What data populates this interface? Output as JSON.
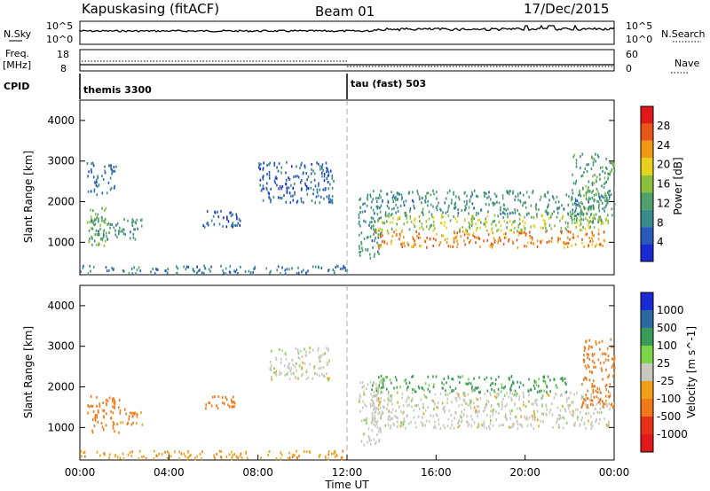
{
  "header": {
    "station": "Kapuskasing (fitACF)",
    "beam": "Beam 01",
    "date": "17/Dec/2015"
  },
  "noise_panel": {
    "left_label": "N.Sky",
    "right_label": "N.Search",
    "ticks_left": [
      "10^5",
      "10^0"
    ],
    "ticks_right": [
      "10^5",
      "10^0"
    ]
  },
  "freq_panel": {
    "left_label": "Freq.",
    "unit": "[MHz]",
    "right_label": "Nave",
    "ticks_left": [
      "18",
      "8"
    ],
    "ticks_right": [
      "60",
      "0"
    ]
  },
  "cpid": {
    "label": "CPID",
    "segments": [
      {
        "name": "themis 3300",
        "start_hour": 0
      },
      {
        "name": "tau (fast) 503",
        "start_hour": 12
      }
    ]
  },
  "chart_data": [
    {
      "type": "heatmap",
      "ylabel": "Slant Range [km]",
      "xlabel": "Time UT",
      "xlim": [
        0,
        24
      ],
      "ylim": [
        200,
        4500
      ],
      "yticks": [
        1000,
        2000,
        3000,
        4000
      ],
      "colorbar": {
        "label": "Power [dB]",
        "ticks": [
          "4",
          "8",
          "12",
          "16",
          "20",
          "24",
          "28"
        ],
        "colors": [
          "#1a2bd6",
          "#2a5ab8",
          "#3a8c8a",
          "#4fa06a",
          "#8cbf3c",
          "#e6d21a",
          "#f09a14",
          "#e8561a",
          "#e01818"
        ]
      },
      "regions": [
        {
          "t0": 0.3,
          "t1": 1.2,
          "r0": 900,
          "r1": 1900,
          "level": 14
        },
        {
          "t0": 0.5,
          "t1": 2.8,
          "r0": 1100,
          "r1": 1600,
          "level": 10
        },
        {
          "t0": 0.3,
          "t1": 1.6,
          "r0": 2200,
          "r1": 3000,
          "level": 6
        },
        {
          "t0": 0.0,
          "t1": 12.0,
          "r0": 250,
          "r1": 450,
          "level": 8
        },
        {
          "t0": 5.5,
          "t1": 7.2,
          "r0": 1400,
          "r1": 1800,
          "level": 6
        },
        {
          "t0": 8.0,
          "t1": 11.4,
          "r0": 2000,
          "r1": 3000,
          "level": 6
        },
        {
          "t0": 12.5,
          "t1": 13.5,
          "r0": 600,
          "r1": 2200,
          "level": 10
        },
        {
          "t0": 13.2,
          "t1": 23.6,
          "r0": 900,
          "r1": 1300,
          "level": 24
        },
        {
          "t0": 13.0,
          "t1": 23.8,
          "r0": 1300,
          "r1": 1700,
          "level": 16
        },
        {
          "t0": 13.0,
          "t1": 23.8,
          "r0": 1700,
          "r1": 2300,
          "level": 10
        },
        {
          "t0": 22.0,
          "t1": 24.0,
          "r0": 1500,
          "r1": 3200,
          "level": 12
        }
      ]
    },
    {
      "type": "heatmap",
      "ylabel": "Slant Range [km]",
      "xlabel": "Time UT",
      "xlim": [
        0,
        24
      ],
      "ylim": [
        200,
        4500
      ],
      "yticks": [
        1000,
        2000,
        3000,
        4000
      ],
      "xticks": [
        "00:00",
        "04:00",
        "08:00",
        "12:00",
        "16:00",
        "20:00",
        "00:00"
      ],
      "colorbar": {
        "label": "Velocity [m s^-1]",
        "ticks": [
          "1000",
          "500",
          "100",
          "25",
          "-25",
          "-100",
          "-500",
          "-1000"
        ],
        "colors": [
          "#1a2bd6",
          "#2a6aa0",
          "#3a9a5a",
          "#7cd44a",
          "#c8c8be",
          "#f0a018",
          "#f07818",
          "#e83018",
          "#e01818"
        ]
      },
      "regions": [
        {
          "t0": 0.3,
          "t1": 1.8,
          "r0": 900,
          "r1": 1800,
          "level": -150
        },
        {
          "t0": 1.8,
          "t1": 2.8,
          "r0": 1100,
          "r1": 1500,
          "level": -120
        },
        {
          "t0": 0.0,
          "t1": 12.0,
          "r0": 250,
          "r1": 450,
          "level": -80
        },
        {
          "t0": 5.5,
          "t1": 7.0,
          "r0": 1500,
          "r1": 1800,
          "level": -300
        },
        {
          "t0": 8.5,
          "t1": 11.2,
          "r0": 2200,
          "r1": 3000,
          "level": 0
        },
        {
          "t0": 12.5,
          "t1": 13.5,
          "r0": 600,
          "r1": 2200,
          "level": 0
        },
        {
          "t0": 13.0,
          "t1": 23.8,
          "r0": 1000,
          "r1": 1900,
          "level": 0
        },
        {
          "t0": 13.0,
          "t1": 22.0,
          "r0": 1900,
          "r1": 2300,
          "level": 80
        },
        {
          "t0": 22.5,
          "t1": 24.0,
          "r0": 1500,
          "r1": 3200,
          "level": -300
        }
      ]
    }
  ],
  "time_axis": {
    "ticks": [
      "00:00",
      "04:00",
      "08:00",
      "12:00",
      "16:00",
      "20:00",
      "00:00"
    ],
    "label": "Time UT"
  }
}
